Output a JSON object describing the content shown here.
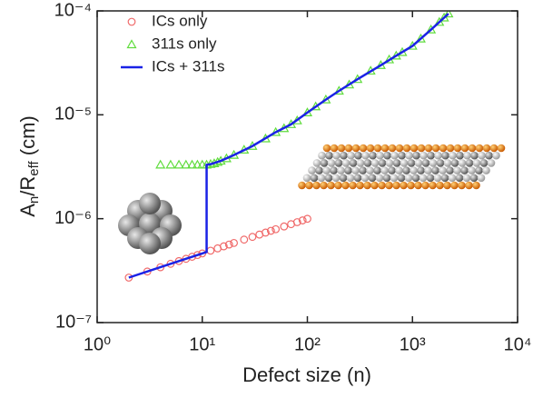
{
  "chart_data": {
    "type": "scatter",
    "xlabel": "Defect size (n)",
    "ylabel": [
      "A",
      "n",
      "/R",
      "eff",
      " (cm)"
    ],
    "xscale": "log",
    "yscale": "log",
    "xlim": [
      1,
      10000
    ],
    "ylim": [
      1e-07,
      0.0001
    ],
    "xticks": [
      {
        "value": 1,
        "label": "10⁰"
      },
      {
        "value": 10,
        "label": "10¹"
      },
      {
        "value": 100,
        "label": "10²"
      },
      {
        "value": 1000,
        "label": "10³"
      },
      {
        "value": 10000,
        "label": "10⁴"
      }
    ],
    "yticks": [
      {
        "value": 1e-07,
        "label": "10⁻⁷"
      },
      {
        "value": 1e-06,
        "label": "10⁻⁶"
      },
      {
        "value": 1e-05,
        "label": "10⁻⁵"
      },
      {
        "value": 0.0001,
        "label": "10⁻⁴"
      }
    ],
    "legend": "top-left",
    "series": [
      {
        "name": "ICs only",
        "color": "#f06a6a",
        "marker": "circle",
        "x": [
          2,
          3,
          4,
          5,
          6,
          7,
          8,
          9,
          10,
          12,
          14,
          16,
          18,
          20,
          25,
          30,
          35,
          40,
          45,
          50,
          60,
          70,
          80,
          90,
          100
        ],
        "values": [
          2.71e-07,
          3.1e-07,
          3.41e-07,
          3.68e-07,
          3.91e-07,
          4.11e-07,
          4.3e-07,
          4.47e-07,
          4.63e-07,
          4.92e-07,
          5.18e-07,
          5.42e-07,
          5.64e-07,
          5.84e-07,
          6.29e-07,
          6.68e-07,
          7.03e-07,
          7.35e-07,
          7.65e-07,
          7.92e-07,
          8.42e-07,
          8.86e-07,
          9.26e-07,
          9.63e-07,
          9.98e-07
        ]
      },
      {
        "name": "311s only",
        "color": "#5fdc3c",
        "marker": "triangle",
        "x": [
          4,
          5,
          6,
          7,
          8,
          9,
          10,
          11,
          12,
          13,
          14,
          15,
          17,
          20,
          25,
          30,
          40,
          50,
          60,
          70,
          80,
          100,
          120,
          150,
          200,
          250,
          300,
          400,
          500,
          600,
          700,
          800,
          1000,
          1200,
          1500,
          1800,
          2000,
          2200
        ],
        "values": [
          3.3e-06,
          3.3e-06,
          3.3e-06,
          3.3e-06,
          3.3e-06,
          3.3e-06,
          3.3e-06,
          3.3e-06,
          3.35e-06,
          3.4e-06,
          3.5e-06,
          3.6e-06,
          3.8e-06,
          4.1e-06,
          4.6e-06,
          5e-06,
          5.9e-06,
          6.8e-06,
          7.4e-06,
          8.1e-06,
          8.8e-06,
          1.05e-05,
          1.2e-05,
          1.4e-05,
          1.7e-05,
          1.95e-05,
          2.2e-05,
          2.65e-05,
          3e-05,
          3.4e-05,
          3.7e-05,
          4e-05,
          4.6e-05,
          5.4e-05,
          6.6e-05,
          7.8e-05,
          8.6e-05,
          9.4e-05
        ]
      },
      {
        "name": "ICs + 311s",
        "color": "#1a22e6",
        "marker": "line",
        "x": [
          2,
          5,
          10,
          11,
          11,
          12,
          15,
          20,
          30,
          50,
          70,
          100,
          150,
          200,
          300,
          500,
          700,
          1000,
          1500,
          2000,
          2200
        ],
        "values": [
          2.71e-07,
          3.68e-07,
          4.63e-07,
          4.78e-07,
          3.3e-06,
          3.35e-06,
          3.6e-06,
          4.1e-06,
          5e-06,
          6.8e-06,
          8.1e-06,
          1.05e-05,
          1.4e-05,
          1.7e-05,
          2.2e-05,
          3e-05,
          3.7e-05,
          4.6e-05,
          6.6e-05,
          8.6e-05,
          9.4e-05
        ]
      }
    ]
  }
}
